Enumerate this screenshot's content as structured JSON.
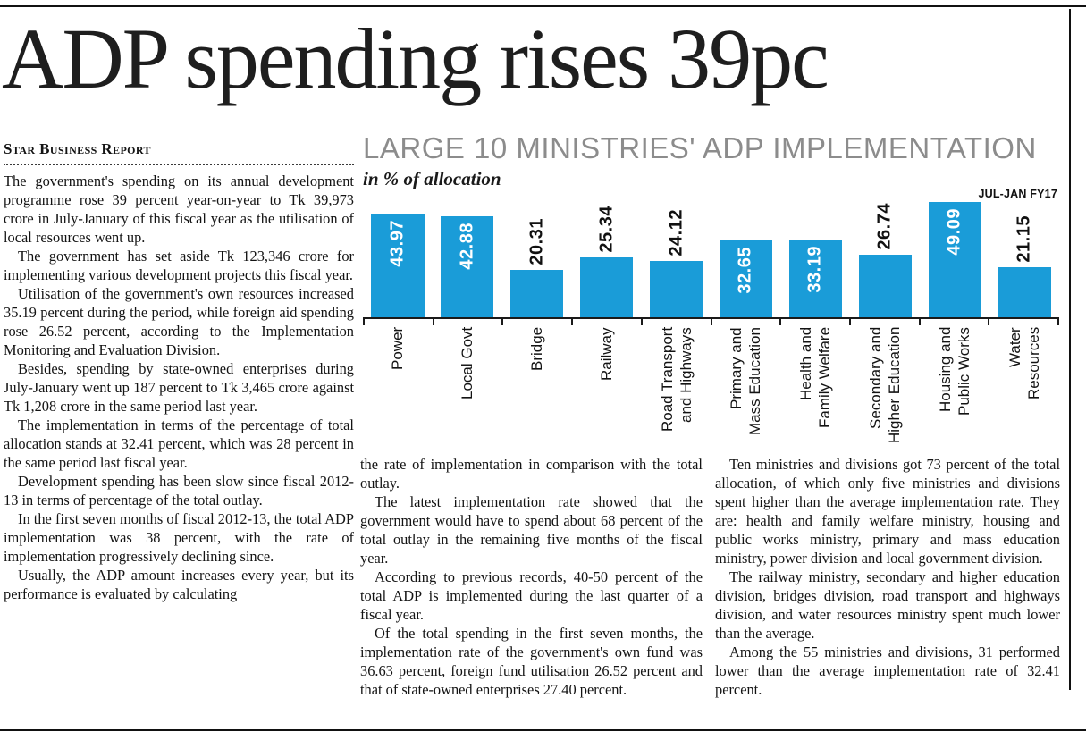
{
  "page": {
    "headline": "ADP spending rises 39pc",
    "byline": "Star Business Report"
  },
  "article": {
    "column1": [
      "The government's spending on its annual development programme rose 39 percent year-on-year to Tk 39,973 crore in July-January of this fiscal year as the utilisation of local resources went up.",
      "The government has set aside Tk 123,346 crore for implementing various development projects this fiscal year.",
      "Utilisation of the government's own resources increased 35.19 percent during the period, while foreign aid spending rose 26.52 percent, according to the Implementation Monitoring and Evaluation Division.",
      "Besides, spending by state-owned enterprises during July-January went up 187 percent to Tk 3,465 crore against Tk 1,208 crore in the same period last year.",
      "The implementation in terms of the percentage of total allocation stands at 32.41 percent, which was 28 percent in the same period last fiscal year.",
      "Development spending has been slow since fiscal 2012-13 in terms of percentage of the total outlay.",
      "In the first seven months of fiscal 2012-13, the total ADP implementation was 38 percent, with the rate of implementation progressively declining since.",
      "Usually, the ADP amount increases every year, but its performance is evaluated by calculating"
    ],
    "column2": [
      "the rate of implementation in comparison with the total outlay.",
      "The latest implementation rate showed that the government would have to spend about 68 percent of the total outlay in the remaining five months of the fiscal year.",
      "According to previous records, 40-50 percent of the total ADP is implemented during the last quarter of a fiscal year.",
      "Of the total spending in the first seven months, the implementation rate of the government's own fund was 36.63 percent, foreign fund utilisation 26.52 percent and that of state-owned enterprises 27.40 percent."
    ],
    "column3": [
      "Ten ministries and divisions got 73 percent of the total allocation, of which only five ministries and divisions spent higher than the average implementation rate. They are: health and family welfare ministry, housing and public works ministry, primary and mass education ministry, power division and local government division.",
      "The railway ministry, secondary and higher education division, bridges division, road transport and highways division, and water resources ministry spent much lower than the average.",
      "Among the 55 ministries and divisions, 31 performed lower than the average implementation rate of 32.41 percent."
    ]
  },
  "chart": {
    "title": "LARGE 10 MINISTRIES' ADP IMPLEMENTATION",
    "subtitle": "in % of allocation",
    "period_label": "JUL-JAN FY17"
  },
  "chart_data": {
    "type": "bar",
    "title": "LARGE 10 MINISTRIES' ADP IMPLEMENTATION",
    "subtitle": "in % of allocation",
    "annotation": "JUL-JAN FY17",
    "unit": "% of allocation",
    "categories": [
      "Power",
      "Local Govt",
      "Bridge",
      "Railway",
      "Road Transport\nand Highways",
      "Primary and\nMass Education",
      "Health and\nFamily Welfare",
      "Secondary and\nHigher Education",
      "Housing and\nPublic Works",
      "Water\nResources"
    ],
    "values": [
      43.97,
      42.88,
      20.31,
      25.34,
      24.12,
      32.65,
      33.19,
      26.74,
      49.09,
      21.15
    ],
    "ylim": [
      0,
      50
    ],
    "bar_color": "#1a9cd8",
    "grid": false,
    "legend": "none",
    "value_label_style": "rotated 90deg, white inside tall bars, black above short bars",
    "category_label_style": "rotated 90deg below axis"
  }
}
